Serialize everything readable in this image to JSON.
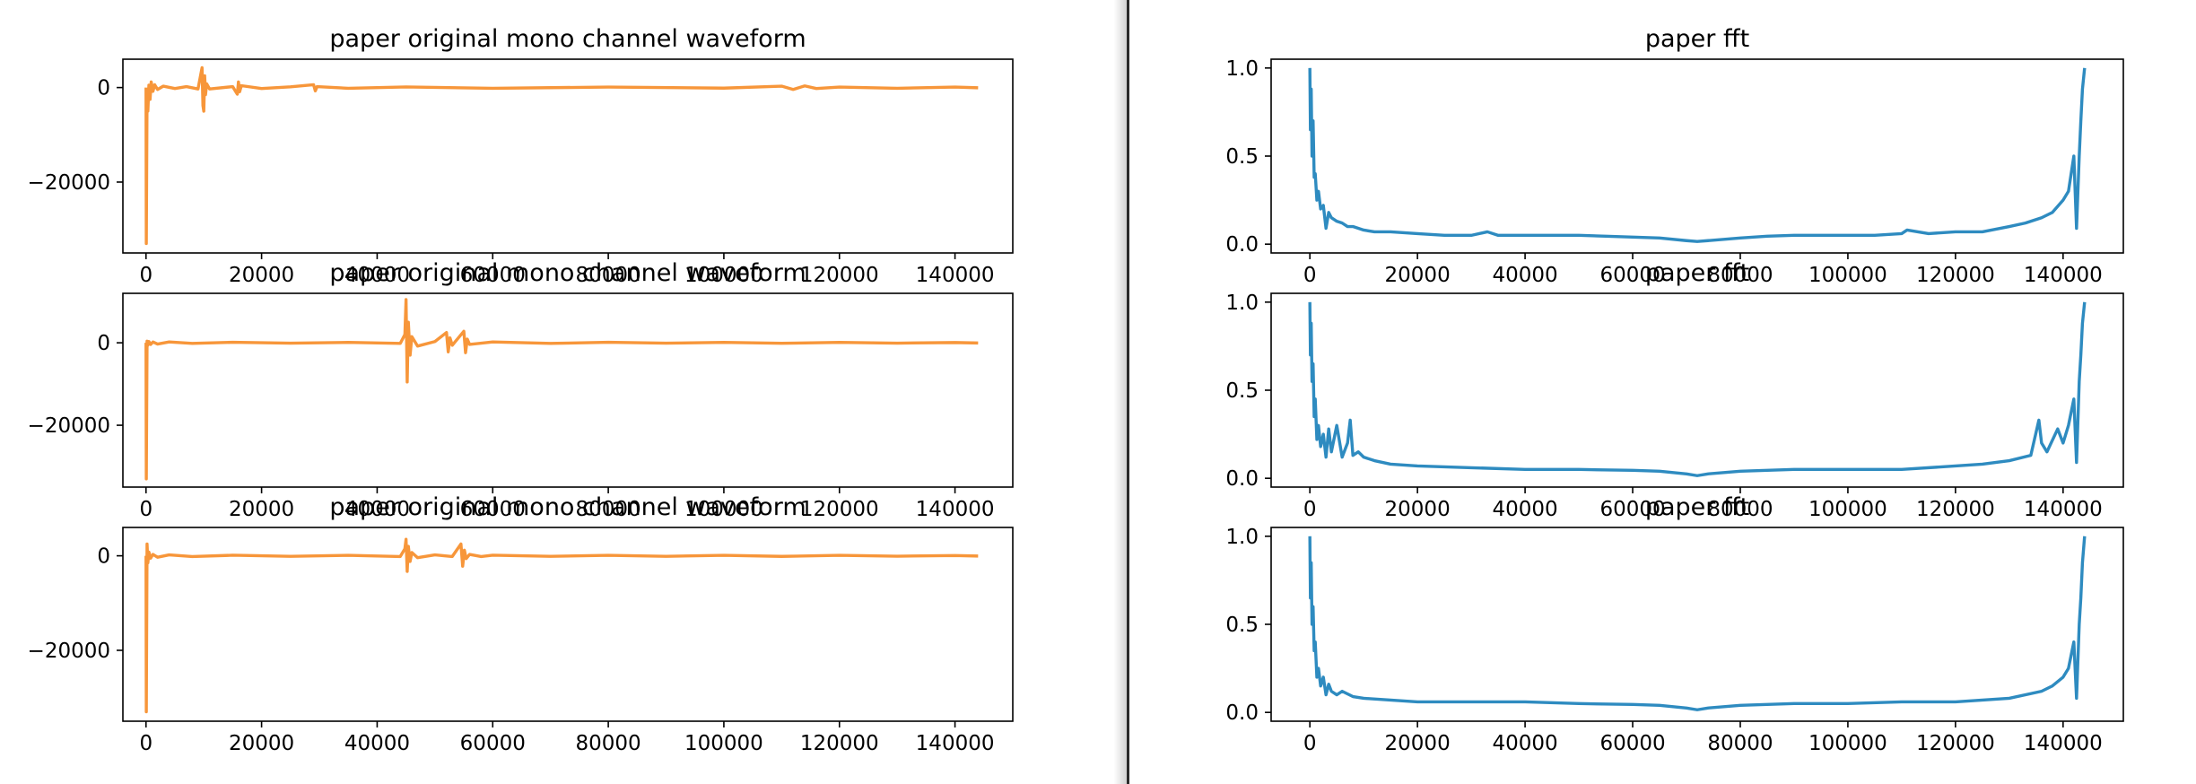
{
  "colors": {
    "waveform": "#f7963a",
    "fft": "#2e8bc0",
    "divider": "#2b2b2b",
    "axis": "#000000",
    "background": "#ffffff"
  },
  "chart_data": [
    {
      "type": "line",
      "title": "paper original mono channel waveform",
      "xlabel": "",
      "ylabel": "",
      "xlim": [
        -4000,
        150000
      ],
      "ylim": [
        -35000,
        6000
      ],
      "xticks": [
        0,
        20000,
        40000,
        60000,
        80000,
        100000,
        120000,
        140000
      ],
      "xtick_labels": [
        "0",
        "20000",
        "40000",
        "60000",
        "80000",
        "100000",
        "120000",
        "140000"
      ],
      "yticks": [
        0,
        -20000
      ],
      "ytick_labels": [
        "0",
        "−20000"
      ],
      "grid": false,
      "color": "waveform",
      "series": [
        {
          "x": [
            0,
            50,
            180,
            320,
            500,
            700,
            900,
            1200,
            1500,
            2000,
            3000,
            5000,
            7000,
            9000,
            9700,
            9850,
            10000,
            10150,
            10300,
            10500,
            11000,
            15000,
            15800,
            16000,
            16200,
            16500,
            20000,
            25000,
            29000,
            29300,
            29600,
            35000,
            45000,
            60000,
            80000,
            100000,
            110000,
            112000,
            114000,
            116000,
            120000,
            130000,
            140000,
            144000
          ],
          "y": [
            0,
            -33000,
            -1500,
            -5000,
            500,
            -2500,
            1200,
            -800,
            600,
            -400,
            300,
            -200,
            200,
            -300,
            4200,
            -3800,
            -5000,
            2500,
            -1500,
            800,
            -300,
            200,
            -1400,
            1200,
            -900,
            400,
            -200,
            150,
            600,
            -700,
            200,
            -150,
            120,
            -150,
            100,
            -120,
            300,
            -400,
            350,
            -200,
            100,
            -150,
            100,
            -50
          ]
        }
      ]
    },
    {
      "type": "line",
      "title": "paper fft",
      "xlabel": "",
      "ylabel": "",
      "xlim": [
        -7200,
        151200
      ],
      "ylim": [
        -0.05,
        1.05
      ],
      "xticks": [
        0,
        20000,
        40000,
        60000,
        80000,
        100000,
        120000,
        140000
      ],
      "xtick_labels": [
        "0",
        "20000",
        "40000",
        "60000",
        "80000",
        "100000",
        "120000",
        "140000"
      ],
      "yticks": [
        0.0,
        0.5,
        1.0
      ],
      "ytick_labels": [
        "0.0",
        "0.5",
        "1.0"
      ],
      "grid": false,
      "color": "fft",
      "series": [
        {
          "x": [
            0,
            100,
            250,
            400,
            600,
            800,
            1000,
            1300,
            1600,
            2000,
            2500,
            3000,
            3500,
            4000,
            5000,
            6000,
            7000,
            8000,
            10000,
            12000,
            15000,
            20000,
            25000,
            30000,
            33000,
            35000,
            40000,
            45000,
            50000,
            55000,
            60000,
            65000,
            70000,
            72000,
            74000,
            80000,
            85000,
            90000,
            95000,
            100000,
            105000,
            110000,
            111000,
            115000,
            120000,
            125000,
            130000,
            133000,
            136000,
            138000,
            140000,
            141000,
            142000,
            142500,
            143000,
            143300,
            143600,
            144000
          ],
          "y": [
            1.0,
            0.65,
            0.88,
            0.5,
            0.7,
            0.38,
            0.4,
            0.25,
            0.3,
            0.2,
            0.22,
            0.09,
            0.18,
            0.15,
            0.13,
            0.12,
            0.1,
            0.1,
            0.08,
            0.07,
            0.07,
            0.06,
            0.05,
            0.05,
            0.07,
            0.05,
            0.05,
            0.05,
            0.05,
            0.045,
            0.04,
            0.035,
            0.02,
            0.015,
            0.02,
            0.035,
            0.045,
            0.05,
            0.05,
            0.05,
            0.05,
            0.06,
            0.08,
            0.06,
            0.07,
            0.07,
            0.1,
            0.12,
            0.15,
            0.18,
            0.25,
            0.3,
            0.5,
            0.09,
            0.5,
            0.7,
            0.88,
            1.0
          ]
        }
      ]
    },
    {
      "type": "line",
      "title": "paper original mono channel waveform",
      "xlabel": "",
      "ylabel": "",
      "xlim": [
        -4000,
        150000
      ],
      "ylim": [
        -35000,
        12000
      ],
      "xticks": [
        0,
        20000,
        40000,
        60000,
        80000,
        100000,
        120000,
        140000
      ],
      "xtick_labels": [
        "0",
        "20000",
        "40000",
        "60000",
        "80000",
        "100000",
        "120000",
        "140000"
      ],
      "yticks": [
        0,
        -20000
      ],
      "ytick_labels": [
        "0",
        "−20000"
      ],
      "grid": false,
      "color": "waveform",
      "series": [
        {
          "x": [
            0,
            50,
            180,
            320,
            500,
            800,
            1200,
            2000,
            4000,
            8000,
            15000,
            25000,
            35000,
            44000,
            44800,
            45000,
            45200,
            45400,
            45700,
            46000,
            47000,
            50000,
            52000,
            52300,
            52600,
            53000,
            55000,
            55300,
            55600,
            56000,
            60000,
            70000,
            80000,
            90000,
            100000,
            110000,
            120000,
            130000,
            140000,
            144000
          ],
          "y": [
            0,
            -33000,
            400,
            -600,
            300,
            -400,
            200,
            -300,
            200,
            -150,
            120,
            -100,
            100,
            -150,
            2000,
            10500,
            -9500,
            5000,
            -3000,
            1500,
            -800,
            300,
            2500,
            -2200,
            1200,
            -600,
            2800,
            -2400,
            900,
            -400,
            200,
            -150,
            120,
            -100,
            100,
            -120,
            100,
            -80,
            60,
            -50
          ]
        }
      ]
    },
    {
      "type": "line",
      "title": "paper fft",
      "xlabel": "",
      "ylabel": "",
      "xlim": [
        -7200,
        151200
      ],
      "ylim": [
        -0.05,
        1.05
      ],
      "xticks": [
        0,
        20000,
        40000,
        60000,
        80000,
        100000,
        120000,
        140000
      ],
      "xtick_labels": [
        "0",
        "20000",
        "40000",
        "60000",
        "80000",
        "100000",
        "120000",
        "140000"
      ],
      "yticks": [
        0.0,
        0.5,
        1.0
      ],
      "ytick_labels": [
        "0.0",
        "0.5",
        "1.0"
      ],
      "grid": false,
      "color": "fft",
      "series": [
        {
          "x": [
            0,
            100,
            250,
            400,
            600,
            800,
            1000,
            1300,
            1600,
            2000,
            2500,
            3000,
            3500,
            4000,
            5000,
            6000,
            7000,
            7500,
            8000,
            9000,
            10000,
            12000,
            15000,
            20000,
            30000,
            40000,
            50000,
            60000,
            65000,
            70000,
            72000,
            74000,
            80000,
            90000,
            100000,
            110000,
            120000,
            125000,
            130000,
            134000,
            135500,
            136000,
            137000,
            139000,
            140000,
            141000,
            142000,
            142500,
            143000,
            143300,
            143600,
            144000
          ],
          "y": [
            1.0,
            0.7,
            0.88,
            0.55,
            0.65,
            0.35,
            0.45,
            0.22,
            0.3,
            0.18,
            0.25,
            0.12,
            0.28,
            0.15,
            0.3,
            0.12,
            0.2,
            0.33,
            0.13,
            0.15,
            0.12,
            0.1,
            0.08,
            0.07,
            0.06,
            0.05,
            0.05,
            0.045,
            0.04,
            0.025,
            0.015,
            0.025,
            0.04,
            0.05,
            0.05,
            0.05,
            0.07,
            0.08,
            0.1,
            0.13,
            0.33,
            0.2,
            0.15,
            0.28,
            0.2,
            0.3,
            0.45,
            0.09,
            0.55,
            0.7,
            0.88,
            1.0
          ]
        }
      ]
    },
    {
      "type": "line",
      "title": "paper original mono channel waveform",
      "xlabel": "",
      "ylabel": "",
      "xlim": [
        -4000,
        150000
      ],
      "ylim": [
        -35000,
        6000
      ],
      "xticks": [
        0,
        20000,
        40000,
        60000,
        80000,
        100000,
        120000,
        140000
      ],
      "xtick_labels": [
        "0",
        "20000",
        "40000",
        "60000",
        "80000",
        "100000",
        "120000",
        "140000"
      ],
      "yticks": [
        0,
        -20000
      ],
      "ytick_labels": [
        "0",
        "−20000"
      ],
      "grid": false,
      "color": "waveform",
      "series": [
        {
          "x": [
            0,
            50,
            180,
            320,
            500,
            800,
            1200,
            2000,
            4000,
            8000,
            15000,
            25000,
            35000,
            44000,
            44800,
            45000,
            45200,
            45400,
            45700,
            46000,
            47000,
            50000,
            53000,
            54500,
            54800,
            55100,
            55400,
            56000,
            58000,
            60000,
            70000,
            80000,
            90000,
            100000,
            110000,
            120000,
            130000,
            140000,
            144000
          ],
          "y": [
            0,
            -33000,
            2500,
            -1500,
            800,
            -500,
            300,
            -300,
            200,
            -150,
            120,
            -100,
            100,
            -150,
            1500,
            3500,
            -3300,
            2000,
            -1200,
            700,
            -400,
            200,
            -150,
            2500,
            -2200,
            1200,
            -600,
            300,
            -150,
            120,
            -100,
            100,
            -100,
            100,
            -120,
            100,
            -80,
            60,
            -50
          ]
        }
      ]
    },
    {
      "type": "line",
      "title": "paper fft",
      "xlabel": "",
      "ylabel": "",
      "xlim": [
        -7200,
        151200
      ],
      "ylim": [
        -0.05,
        1.05
      ],
      "xticks": [
        0,
        20000,
        40000,
        60000,
        80000,
        100000,
        120000,
        140000
      ],
      "xtick_labels": [
        "0",
        "20000",
        "40000",
        "60000",
        "80000",
        "100000",
        "120000",
        "140000"
      ],
      "yticks": [
        0.0,
        0.5,
        1.0
      ],
      "ytick_labels": [
        "0.0",
        "0.5",
        "1.0"
      ],
      "grid": false,
      "color": "fft",
      "series": [
        {
          "x": [
            0,
            100,
            250,
            400,
            600,
            800,
            1000,
            1300,
            1600,
            2000,
            2500,
            3000,
            3500,
            4000,
            5000,
            6000,
            8000,
            10000,
            15000,
            20000,
            30000,
            40000,
            50000,
            60000,
            65000,
            70000,
            72000,
            74000,
            80000,
            90000,
            100000,
            110000,
            120000,
            130000,
            136000,
            138000,
            140000,
            141000,
            142000,
            142500,
            143000,
            143300,
            143600,
            144000
          ],
          "y": [
            1.0,
            0.65,
            0.85,
            0.5,
            0.6,
            0.35,
            0.4,
            0.2,
            0.25,
            0.15,
            0.2,
            0.1,
            0.16,
            0.12,
            0.1,
            0.12,
            0.09,
            0.08,
            0.07,
            0.06,
            0.06,
            0.06,
            0.05,
            0.045,
            0.04,
            0.025,
            0.015,
            0.025,
            0.04,
            0.05,
            0.05,
            0.06,
            0.06,
            0.08,
            0.12,
            0.15,
            0.2,
            0.25,
            0.4,
            0.08,
            0.5,
            0.65,
            0.85,
            1.0
          ]
        }
      ]
    }
  ]
}
